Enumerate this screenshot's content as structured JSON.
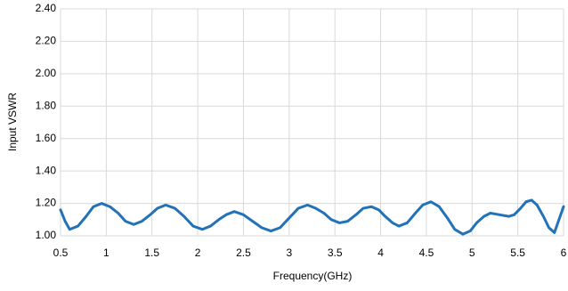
{
  "chart_data": {
    "type": "line",
    "xlabel": "Frequency(GHz)",
    "ylabel": "Input VSWR",
    "x": [
      0.5,
      0.55,
      0.6,
      0.69,
      0.78,
      0.86,
      0.95,
      1.04,
      1.13,
      1.21,
      1.3,
      1.39,
      1.48,
      1.56,
      1.65,
      1.75,
      1.85,
      1.95,
      2.05,
      2.14,
      2.23,
      2.31,
      2.4,
      2.5,
      2.6,
      2.7,
      2.8,
      2.9,
      3.0,
      3.1,
      3.2,
      3.29,
      3.38,
      3.46,
      3.55,
      3.64,
      3.73,
      3.81,
      3.9,
      3.98,
      4.05,
      4.13,
      4.2,
      4.29,
      4.38,
      4.46,
      4.55,
      4.64,
      4.73,
      4.81,
      4.9,
      4.98,
      5.05,
      5.13,
      5.2,
      5.3,
      5.4,
      5.46,
      5.53,
      5.59,
      5.65,
      5.71,
      5.78,
      5.84,
      5.9,
      5.95,
      6.0
    ],
    "series": [
      {
        "name": "Input VSWR",
        "color": "#2272b9",
        "values": [
          1.16,
          1.09,
          1.04,
          1.06,
          1.12,
          1.18,
          1.2,
          1.18,
          1.14,
          1.09,
          1.07,
          1.09,
          1.13,
          1.17,
          1.19,
          1.17,
          1.12,
          1.06,
          1.04,
          1.06,
          1.1,
          1.13,
          1.15,
          1.13,
          1.09,
          1.05,
          1.03,
          1.05,
          1.11,
          1.17,
          1.19,
          1.17,
          1.14,
          1.1,
          1.08,
          1.09,
          1.13,
          1.17,
          1.18,
          1.16,
          1.12,
          1.08,
          1.06,
          1.08,
          1.14,
          1.19,
          1.21,
          1.18,
          1.11,
          1.04,
          1.01,
          1.03,
          1.08,
          1.12,
          1.14,
          1.13,
          1.12,
          1.13,
          1.17,
          1.21,
          1.22,
          1.19,
          1.12,
          1.05,
          1.02,
          1.1,
          1.18
        ]
      }
    ],
    "xlim": [
      0.5,
      6
    ],
    "xticks": [
      0.5,
      1,
      1.5,
      2,
      2.5,
      3,
      3.5,
      4,
      4.5,
      5,
      5.5,
      6
    ],
    "ylim": [
      1,
      2.4
    ],
    "yticks": [
      {
        "value": 1,
        "label": "1.00"
      },
      {
        "value": 1.2,
        "label": "1.20"
      },
      {
        "value": 1.4,
        "label": "1.40"
      },
      {
        "value": 1.6,
        "label": "1.60"
      },
      {
        "value": 1.8,
        "label": "1.80"
      },
      {
        "value": 2,
        "label": "2.00"
      },
      {
        "value": 2.2,
        "label": "2.20"
      },
      {
        "value": 2.4,
        "label": "2.40"
      }
    ],
    "grid": true
  }
}
